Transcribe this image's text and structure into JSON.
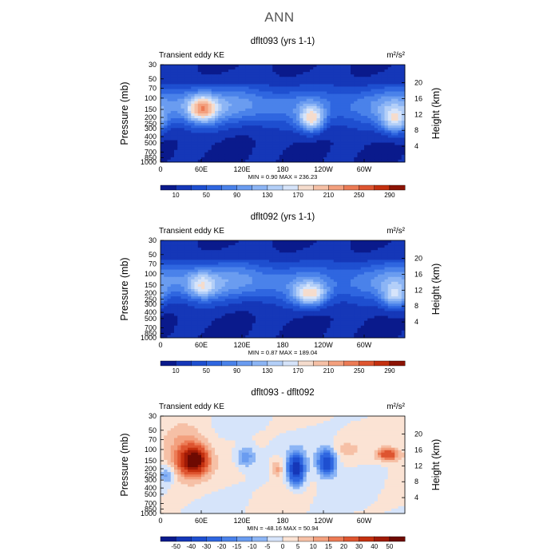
{
  "page_title": "ANN",
  "chart_data": [
    {
      "type": "heatmap",
      "title": "dflt093 (yrs 1-1)",
      "subtitle_left": "Transient eddy KE",
      "units": "m²/s²",
      "ylabel": "Pressure (mb)",
      "ylabel_right": "Height (km)",
      "x_ticks": [
        "0",
        "60E",
        "120E",
        "180",
        "120W",
        "60W"
      ],
      "x_tick_lon": [
        0,
        60,
        120,
        180,
        240,
        300
      ],
      "xlim": [
        0,
        360
      ],
      "y_ticks": [
        "30",
        "50",
        "70",
        "100",
        "150",
        "200",
        "250",
        "300",
        "400",
        "500",
        "700",
        "850",
        "1000"
      ],
      "y_tick_p": [
        30,
        50,
        70,
        100,
        150,
        200,
        250,
        300,
        400,
        500,
        700,
        850,
        1000
      ],
      "ylim": [
        30,
        1000
      ],
      "height_ticks": [
        "20",
        "16",
        "12",
        "8",
        "4"
      ],
      "height_km": [
        20,
        16,
        12,
        8,
        4
      ],
      "minmax_text": "MIN =    0.90   MAX = 236.23",
      "colorbar_labels": [
        "10",
        "50",
        "90",
        "130",
        "170",
        "210",
        "250",
        "290"
      ],
      "levels": [
        10,
        30,
        50,
        70,
        90,
        110,
        130,
        150,
        170,
        190,
        210,
        230,
        250,
        270,
        290
      ],
      "colors": [
        "#0a1a8c",
        "#1537b8",
        "#1e4fd0",
        "#2f66e0",
        "#4a82ea",
        "#6a9cf0",
        "#8cb5f5",
        "#b3cff8",
        "#d6e4fa",
        "#f5dccd",
        "#f6c0a6",
        "#f3a07e",
        "#ec7b55",
        "#de5530",
        "#c4300f",
        "#8c1304"
      ],
      "centers": [
        {
          "lon": 62,
          "p": 145,
          "value": 236,
          "rx": 20,
          "ry": 0.12
        },
        {
          "lon": 222,
          "p": 200,
          "value": 190,
          "rx": 18,
          "ry": 0.13
        },
        {
          "lon": 345,
          "p": 200,
          "value": 175,
          "rx": 20,
          "ry": 0.14
        }
      ]
    },
    {
      "type": "heatmap",
      "title": "dflt092 (yrs 1-1)",
      "subtitle_left": "Transient eddy KE",
      "units": "m²/s²",
      "ylabel": "Pressure (mb)",
      "ylabel_right": "Height (km)",
      "x_ticks": [
        "0",
        "60E",
        "120E",
        "180",
        "120W",
        "60W"
      ],
      "x_tick_lon": [
        0,
        60,
        120,
        180,
        240,
        300
      ],
      "xlim": [
        0,
        360
      ],
      "y_ticks": [
        "30",
        "50",
        "70",
        "100",
        "150",
        "200",
        "250",
        "300",
        "400",
        "500",
        "700",
        "850",
        "1000"
      ],
      "y_tick_p": [
        30,
        50,
        70,
        100,
        150,
        200,
        250,
        300,
        400,
        500,
        700,
        850,
        1000
      ],
      "ylim": [
        30,
        1000
      ],
      "height_ticks": [
        "20",
        "16",
        "12",
        "8",
        "4"
      ],
      "height_km": [
        20,
        16,
        12,
        8,
        4
      ],
      "minmax_text": "MIN =    0.87   MAX = 189.04",
      "colorbar_labels": [
        "10",
        "50",
        "90",
        "130",
        "170",
        "210",
        "250",
        "290"
      ],
      "levels": [
        10,
        30,
        50,
        70,
        90,
        110,
        130,
        150,
        170,
        190,
        210,
        230,
        250,
        270,
        290
      ],
      "colors": [
        "#0a1a8c",
        "#1537b8",
        "#1e4fd0",
        "#2f66e0",
        "#4a82ea",
        "#6a9cf0",
        "#8cb5f5",
        "#b3cff8",
        "#d6e4fa",
        "#f5dccd",
        "#f6c0a6",
        "#f3a07e",
        "#ec7b55",
        "#de5530",
        "#c4300f",
        "#8c1304"
      ],
      "centers": [
        {
          "lon": 62,
          "p": 150,
          "value": 175,
          "rx": 18,
          "ry": 0.11
        },
        {
          "lon": 220,
          "p": 200,
          "value": 189,
          "rx": 24,
          "ry": 0.12
        },
        {
          "lon": 345,
          "p": 200,
          "value": 160,
          "rx": 18,
          "ry": 0.13
        }
      ]
    },
    {
      "type": "heatmap",
      "title": "dflt093 - dflt092",
      "subtitle_left": "Transient eddy KE",
      "units": "m²/s²",
      "ylabel": "Pressure (mb)",
      "ylabel_right": "Height (km)",
      "x_ticks": [
        "0",
        "60E",
        "120E",
        "180",
        "120W",
        "60W"
      ],
      "x_tick_lon": [
        0,
        60,
        120,
        180,
        240,
        300
      ],
      "xlim": [
        0,
        360
      ],
      "y_ticks": [
        "30",
        "50",
        "70",
        "100",
        "150",
        "200",
        "250",
        "300",
        "400",
        "500",
        "700",
        "850",
        "1000"
      ],
      "y_tick_p": [
        30,
        50,
        70,
        100,
        150,
        200,
        250,
        300,
        400,
        500,
        700,
        850,
        1000
      ],
      "ylim": [
        30,
        1000
      ],
      "height_ticks": [
        "20",
        "16",
        "12",
        "8",
        "4"
      ],
      "height_km": [
        20,
        16,
        12,
        8,
        4
      ],
      "minmax_text": "MIN =  -48.16   MAX =  50.94",
      "colorbar_labels": [
        "-50",
        "-40",
        "-30",
        "-20",
        "-15",
        "-10",
        "-5",
        "0",
        "5",
        "10",
        "15",
        "20",
        "30",
        "40",
        "50"
      ],
      "levels": [
        -50,
        -40,
        -30,
        -20,
        -15,
        -10,
        -5,
        0,
        5,
        10,
        15,
        20,
        30,
        40,
        50
      ],
      "colors": [
        "#0a1a8c",
        "#1537b8",
        "#1e4fd0",
        "#2f66e0",
        "#4a82ea",
        "#6a9cf0",
        "#8cb5f5",
        "#d6e4fa",
        "#fbe3d4",
        "#f6c0a6",
        "#f3a07e",
        "#ec7b55",
        "#de5530",
        "#c4300f",
        "#a01a06",
        "#6e0a02"
      ],
      "centers": [
        {
          "lon": 50,
          "p": 150,
          "value": 50.9,
          "rx": 16,
          "ry": 0.11
        },
        {
          "lon": 40,
          "p": 130,
          "value": 22,
          "rx": 28,
          "ry": 0.22
        },
        {
          "lon": 125,
          "p": 130,
          "value": -15,
          "rx": 14,
          "ry": 0.1
        },
        {
          "lon": 200,
          "p": 200,
          "value": -48.2,
          "rx": 11,
          "ry": 0.14
        },
        {
          "lon": 245,
          "p": 160,
          "value": -40,
          "rx": 12,
          "ry": 0.12
        },
        {
          "lon": 172,
          "p": 200,
          "value": 12,
          "rx": 8,
          "ry": 0.1
        },
        {
          "lon": 335,
          "p": 120,
          "value": 30,
          "rx": 14,
          "ry": 0.06
        },
        {
          "lon": 10,
          "p": 250,
          "value": -12,
          "rx": 9,
          "ry": 0.08
        },
        {
          "lon": 270,
          "p": 100,
          "value": 6,
          "rx": 20,
          "ry": 0.08
        }
      ]
    }
  ]
}
